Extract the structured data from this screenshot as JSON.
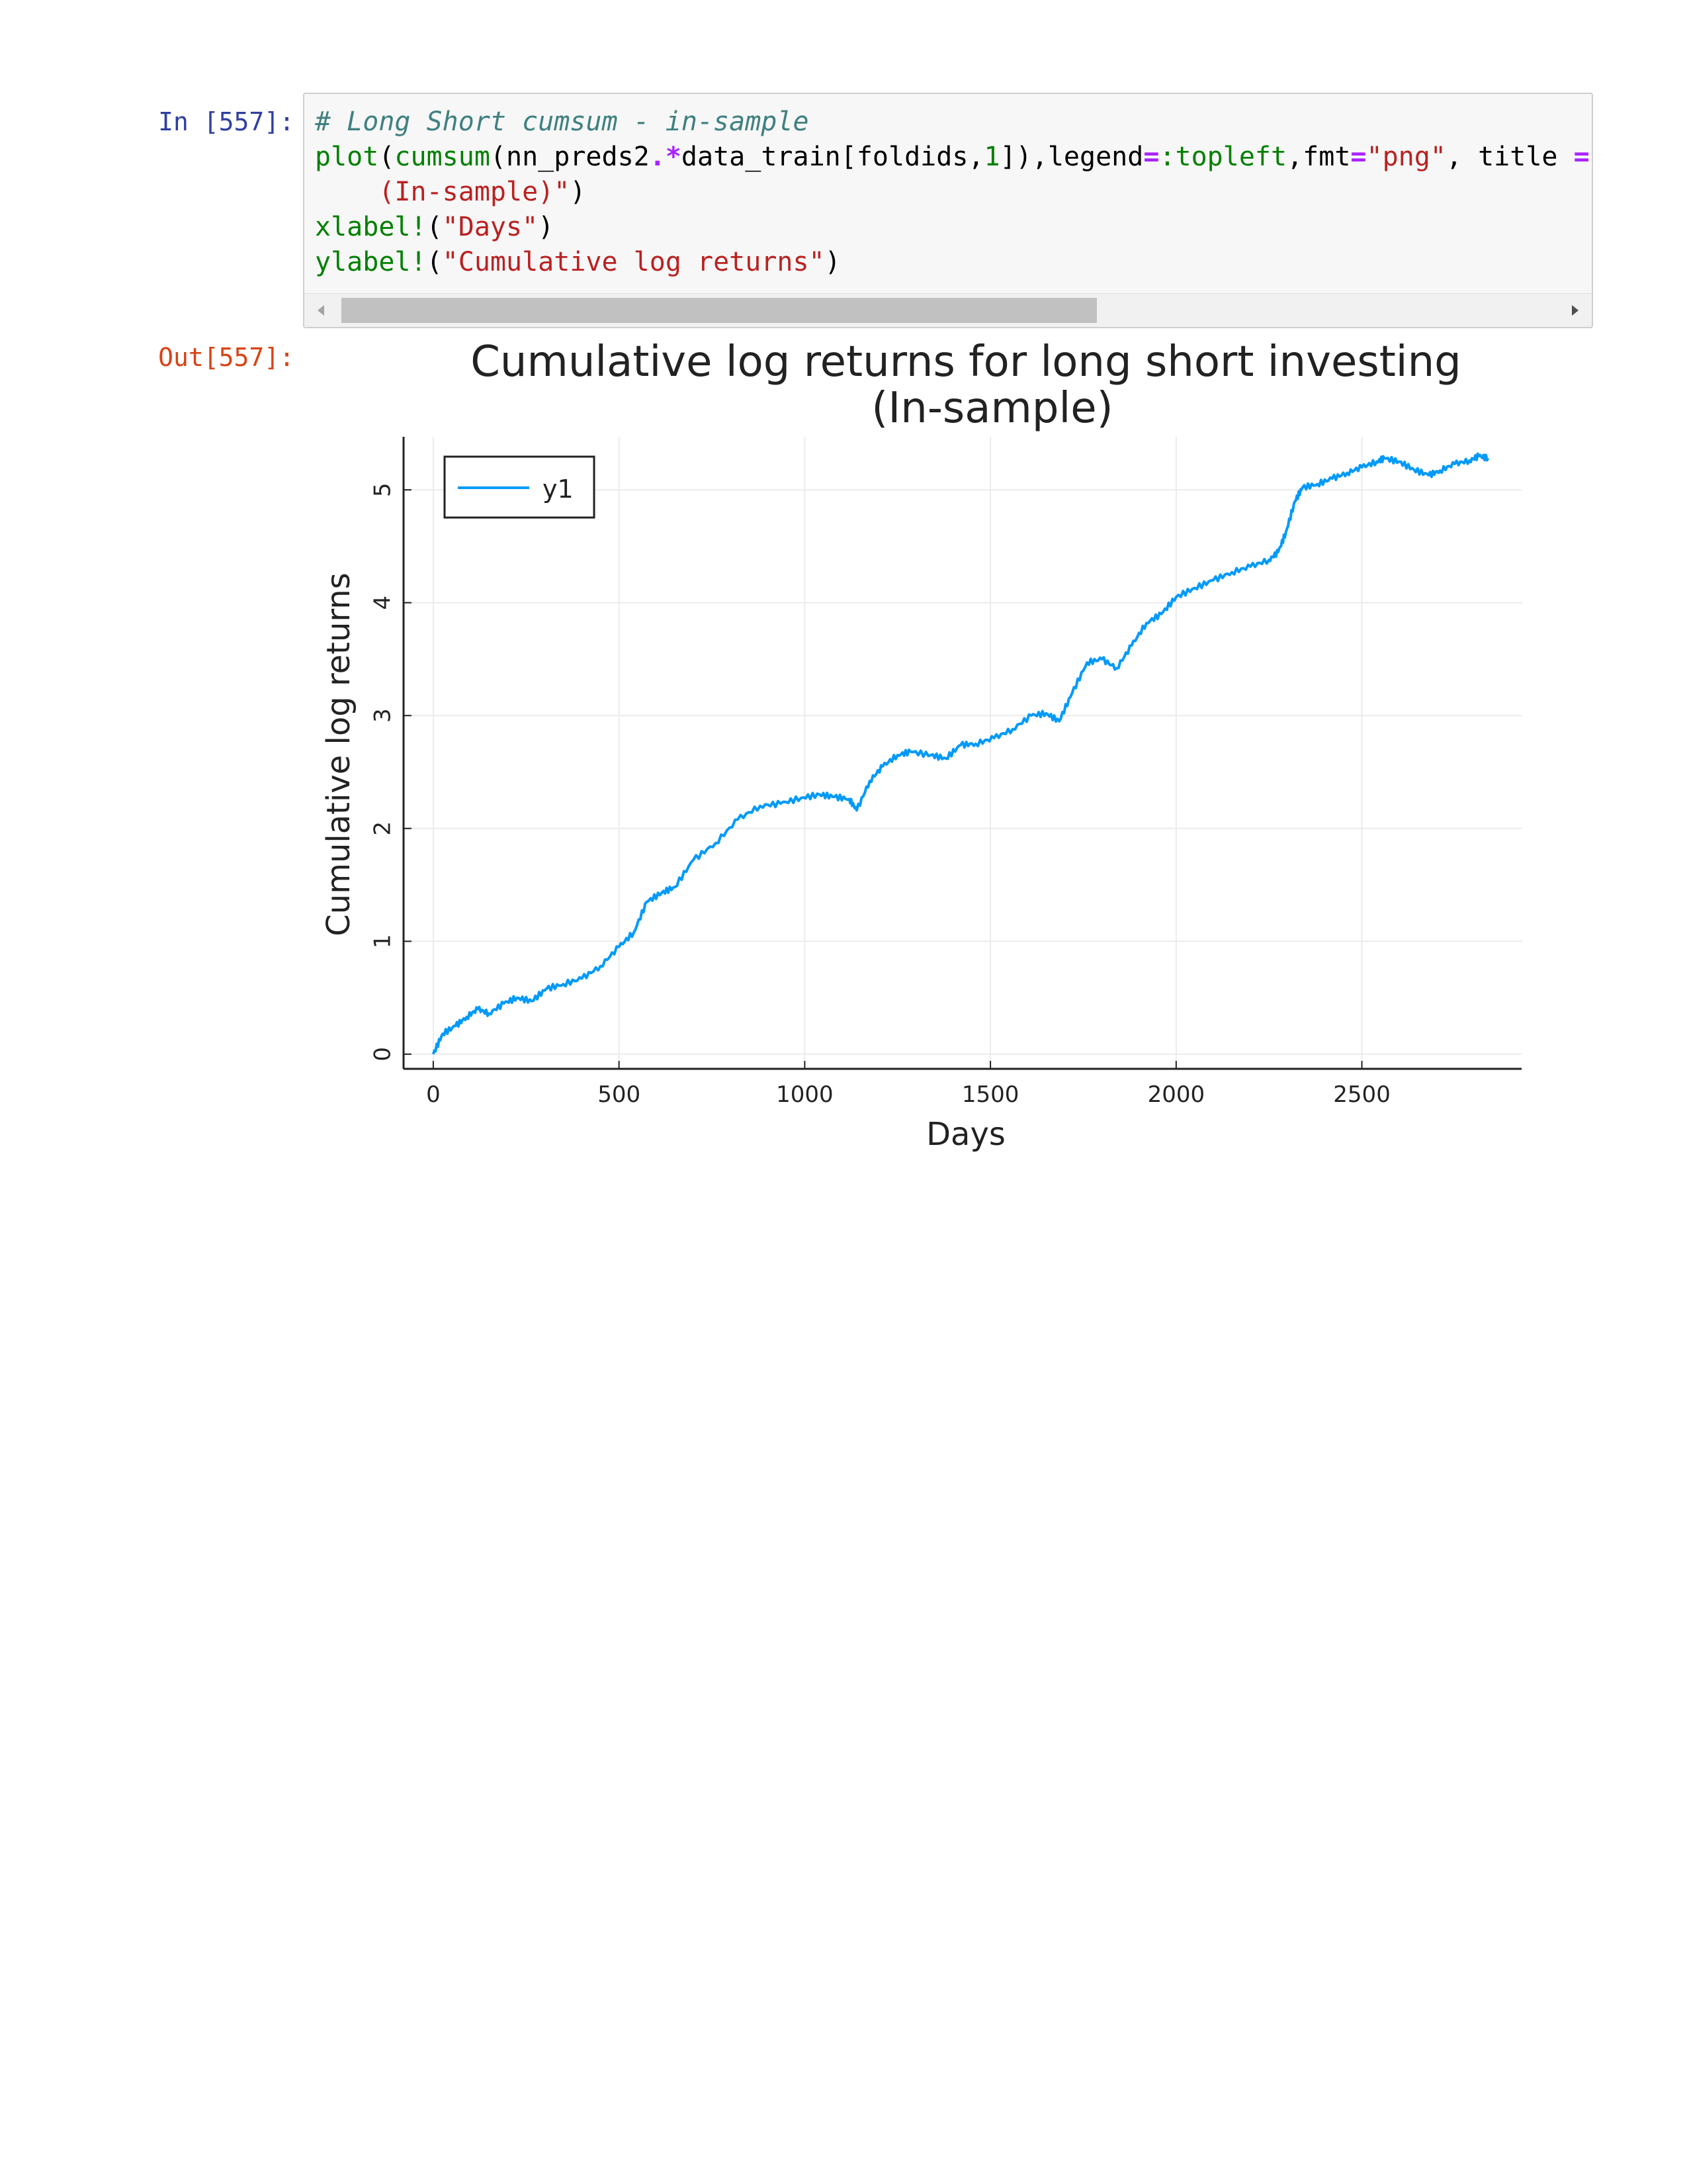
{
  "cell": {
    "in_prompt": "In [557]:",
    "out_prompt": "Out[557]:",
    "code_lines": [
      [
        {
          "t": "# Long Short cumsum - in-sample",
          "c": "c-comment"
        }
      ],
      [
        {
          "t": "plot",
          "c": "c-fn"
        },
        {
          "t": "(",
          "c": ""
        },
        {
          "t": "cumsum",
          "c": "c-fn"
        },
        {
          "t": "(nn_preds2",
          "c": ""
        },
        {
          "t": ".*",
          "c": "c-op"
        },
        {
          "t": "data_train[foldids,",
          "c": ""
        },
        {
          "t": "1",
          "c": "c-num"
        },
        {
          "t": "]),legend",
          "c": ""
        },
        {
          "t": "=",
          "c": "c-op"
        },
        {
          "t": ":topleft",
          "c": "c-sym"
        },
        {
          "t": ",fmt",
          "c": ""
        },
        {
          "t": "=",
          "c": "c-op"
        },
        {
          "t": "\"png\"",
          "c": "c-str"
        },
        {
          "t": ", title ",
          "c": ""
        },
        {
          "t": "=",
          "c": "c-op"
        }
      ],
      [
        {
          "t": "    (In-sample)\"",
          "c": "c-str"
        },
        {
          "t": ")",
          "c": ""
        }
      ],
      [
        {
          "t": "xlabel!",
          "c": "c-fn"
        },
        {
          "t": "(",
          "c": ""
        },
        {
          "t": "\"Days\"",
          "c": "c-str"
        },
        {
          "t": ")",
          "c": ""
        }
      ],
      [
        {
          "t": "ylabel!",
          "c": "c-fn"
        },
        {
          "t": "(",
          "c": ""
        },
        {
          "t": "\"Cumulative log returns\"",
          "c": "c-str"
        },
        {
          "t": ")",
          "c": ""
        }
      ]
    ]
  },
  "colors": {
    "series": "#009af9",
    "grid": "#ebebeb",
    "axis": "#222222"
  },
  "chart_data": {
    "type": "line",
    "title": "Cumulative log returns for long short investing",
    "title_line2": "(In-sample)",
    "xlabel": "Days",
    "ylabel": "Cumulative log returns",
    "xlim": [
      -80,
      2930
    ],
    "ylim": [
      -0.13,
      5.47
    ],
    "xticks": [
      0,
      500,
      1000,
      1500,
      2000,
      2500
    ],
    "yticks": [
      0,
      1,
      2,
      3,
      4,
      5
    ],
    "grid": true,
    "legend": "top-left",
    "series": [
      {
        "name": "y1",
        "points": [
          [
            0,
            0.0
          ],
          [
            25,
            0.18
          ],
          [
            60,
            0.25
          ],
          [
            90,
            0.33
          ],
          [
            120,
            0.4
          ],
          [
            150,
            0.36
          ],
          [
            190,
            0.45
          ],
          [
            225,
            0.5
          ],
          [
            265,
            0.47
          ],
          [
            305,
            0.58
          ],
          [
            350,
            0.62
          ],
          [
            400,
            0.67
          ],
          [
            450,
            0.78
          ],
          [
            500,
            0.95
          ],
          [
            540,
            1.08
          ],
          [
            575,
            1.35
          ],
          [
            615,
            1.43
          ],
          [
            650,
            1.48
          ],
          [
            700,
            1.72
          ],
          [
            760,
            1.87
          ],
          [
            820,
            2.08
          ],
          [
            880,
            2.2
          ],
          [
            935,
            2.22
          ],
          [
            990,
            2.27
          ],
          [
            1040,
            2.3
          ],
          [
            1080,
            2.28
          ],
          [
            1120,
            2.26
          ],
          [
            1140,
            2.16
          ],
          [
            1175,
            2.42
          ],
          [
            1210,
            2.55
          ],
          [
            1250,
            2.65
          ],
          [
            1285,
            2.68
          ],
          [
            1340,
            2.65
          ],
          [
            1380,
            2.62
          ],
          [
            1420,
            2.74
          ],
          [
            1460,
            2.75
          ],
          [
            1510,
            2.8
          ],
          [
            1560,
            2.88
          ],
          [
            1610,
            3.0
          ],
          [
            1650,
            3.02
          ],
          [
            1685,
            2.95
          ],
          [
            1720,
            3.2
          ],
          [
            1760,
            3.47
          ],
          [
            1800,
            3.5
          ],
          [
            1840,
            3.42
          ],
          [
            1880,
            3.62
          ],
          [
            1920,
            3.82
          ],
          [
            1960,
            3.9
          ],
          [
            2000,
            4.05
          ],
          [
            2050,
            4.13
          ],
          [
            2100,
            4.2
          ],
          [
            2150,
            4.27
          ],
          [
            2200,
            4.32
          ],
          [
            2250,
            4.38
          ],
          [
            2275,
            4.45
          ],
          [
            2295,
            4.62
          ],
          [
            2320,
            4.9
          ],
          [
            2340,
            5.02
          ],
          [
            2380,
            5.05
          ],
          [
            2420,
            5.1
          ],
          [
            2460,
            5.15
          ],
          [
            2500,
            5.2
          ],
          [
            2540,
            5.25
          ],
          [
            2560,
            5.28
          ],
          [
            2600,
            5.25
          ],
          [
            2640,
            5.18
          ],
          [
            2680,
            5.13
          ],
          [
            2710,
            5.17
          ],
          [
            2750,
            5.23
          ],
          [
            2790,
            5.26
          ],
          [
            2815,
            5.3
          ],
          [
            2840,
            5.28
          ]
        ]
      }
    ]
  }
}
